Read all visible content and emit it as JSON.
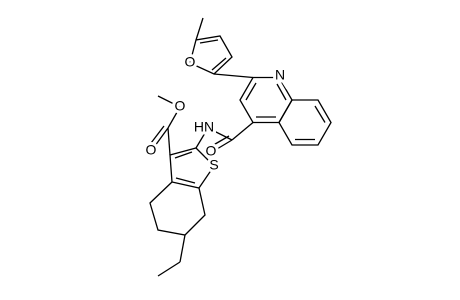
{
  "atoms": [
    {
      "label": "O"
    },
    {
      "label": "N"
    },
    {
      "label": "O"
    },
    {
      "label": "HN"
    },
    {
      "label": "S"
    },
    {
      "label": "O"
    },
    {
      "label": "O"
    }
  ]
}
